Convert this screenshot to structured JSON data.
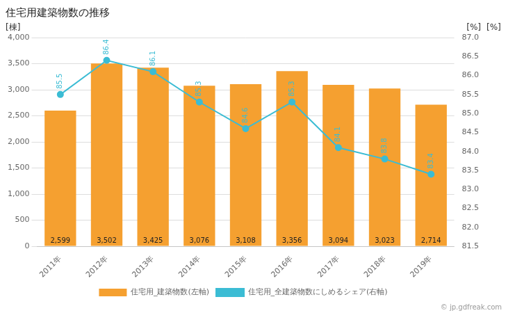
{
  "chart_data": {
    "type": "bar",
    "title": "住宅用建築物数の推移",
    "categories": [
      "2011年",
      "2012年",
      "2013年",
      "2014年",
      "2015年",
      "2016年",
      "2017年",
      "2018年",
      "2019年"
    ],
    "series": [
      {
        "name": "住宅用_建築物数(左軸)",
        "type": "bar",
        "color": "#f5a030",
        "values": [
          2599,
          3502,
          3425,
          3076,
          3108,
          3356,
          3094,
          3023,
          2714
        ],
        "data_labels": true,
        "value_labels": [
          "2,599",
          "3,502",
          "3,425",
          "3,076",
          "3,108",
          "3,356",
          "3,094",
          "3,023",
          "2,714"
        ]
      },
      {
        "name": "住宅用_全建築物数にしめるシェア(右軸)",
        "type": "line",
        "axis": "y2",
        "color": "#3bbcd4",
        "marker": "circle",
        "values": [
          85.5,
          86.4,
          86.1,
          85.3,
          84.6,
          85.3,
          84.1,
          83.8,
          83.4
        ],
        "data_labels": true
      }
    ],
    "ylabel": "[棟]",
    "y2label": "[%]",
    "annotations": [
      "[%]",
      "© jp.gdfreak.com"
    ],
    "ylim": [
      0,
      4000
    ],
    "yticks": [
      0,
      500,
      {
        "value": 1000,
        "label": "1,000"
      },
      {
        "value": 1500,
        "label": "1,500"
      },
      {
        "value": 2000,
        "label": "2,000"
      },
      {
        "value": 2500,
        "label": "2,500"
      },
      {
        "value": 3000,
        "label": "3,000"
      },
      {
        "value": 3500,
        "label": "3,500"
      },
      {
        "value": 4000,
        "label": "4,000"
      }
    ],
    "y2lim": [
      81.5,
      87.0
    ],
    "y2ticks": [
      81.5,
      {
        "value": 82,
        "label": "82.0"
      },
      82.5,
      {
        "value": 83,
        "label": "83.0"
      },
      83.5,
      {
        "value": 84,
        "label": "84.0"
      },
      84.5,
      {
        "value": 85,
        "label": "85.0"
      },
      85.5,
      {
        "value": 86,
        "label": "86.0"
      },
      86.5,
      {
        "value": 87,
        "label": "87.0"
      }
    ],
    "grid": true,
    "legend": "bottom"
  }
}
